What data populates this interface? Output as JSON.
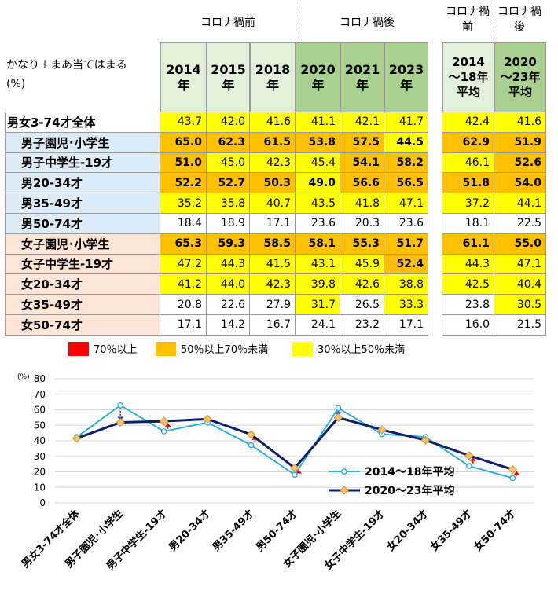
{
  "table": {
    "group_labels": {
      "before": "コロナ禍前",
      "after": "コロナ禍後",
      "before_avg": "コロナ禍\n前",
      "after_avg": "コロナ禍\n後"
    },
    "corner_label": "かなり＋まあ当てはまる\n(%)",
    "year_headers": [
      "2014\n年",
      "2015\n年",
      "2018\n年",
      "2020\n年",
      "2021\n年",
      "2023\n年"
    ],
    "avg_headers": [
      "2014\n～18年\n平均",
      "2020\n～23年\n平均"
    ],
    "colors": {
      "red": "#ff0000",
      "orange": "#ffc000",
      "yellow": "#ffff00",
      "white": "#ffffff",
      "header_before": "#e2efda",
      "header_after": "#a9d08e",
      "label_blue": "#ddebf7",
      "label_pink": "#fce4d6"
    },
    "rows": [
      {
        "label": "男女3-74才全体",
        "tone": "white",
        "values": [
          "43.7",
          "42.0",
          "41.6",
          "41.1",
          "42.1",
          "41.7"
        ],
        "avgs": [
          "42.4",
          "41.6"
        ]
      },
      {
        "label": "男子園児･小学生",
        "tone": "blue",
        "values": [
          "65.0",
          "62.3",
          "61.5",
          "53.8",
          "57.5",
          "44.5"
        ],
        "avgs": [
          "62.9",
          "51.9"
        ]
      },
      {
        "label": "男子中学生-19才",
        "tone": "blue",
        "values": [
          "51.0",
          "45.0",
          "42.3",
          "45.4",
          "54.1",
          "58.2"
        ],
        "avgs": [
          "46.1",
          "52.6"
        ]
      },
      {
        "label": "男20-34才",
        "tone": "blue",
        "values": [
          "52.2",
          "52.7",
          "50.3",
          "49.0",
          "56.6",
          "56.5"
        ],
        "avgs": [
          "51.8",
          "54.0"
        ]
      },
      {
        "label": "男35-49才",
        "tone": "blue",
        "values": [
          "35.2",
          "35.8",
          "40.7",
          "43.5",
          "41.8",
          "47.1"
        ],
        "avgs": [
          "37.2",
          "44.1"
        ]
      },
      {
        "label": "男50-74才",
        "tone": "blue",
        "values": [
          "18.4",
          "18.9",
          "17.1",
          "23.6",
          "20.3",
          "23.6"
        ],
        "avgs": [
          "18.1",
          "22.5"
        ]
      },
      {
        "label": "女子園児･小学生",
        "tone": "pink",
        "values": [
          "65.3",
          "59.3",
          "58.5",
          "58.1",
          "55.3",
          "51.7"
        ],
        "avgs": [
          "61.1",
          "55.0"
        ]
      },
      {
        "label": "女子中学生-19才",
        "tone": "pink",
        "values": [
          "47.2",
          "44.3",
          "41.5",
          "43.1",
          "45.9",
          "52.4"
        ],
        "avgs": [
          "44.3",
          "47.1"
        ]
      },
      {
        "label": "女20-34才",
        "tone": "pink",
        "values": [
          "41.2",
          "44.0",
          "42.3",
          "39.8",
          "42.6",
          "38.8"
        ],
        "avgs": [
          "42.5",
          "40.4"
        ]
      },
      {
        "label": "女35-49才",
        "tone": "pink",
        "values": [
          "20.8",
          "22.6",
          "27.9",
          "31.7",
          "26.5",
          "33.3"
        ],
        "avgs": [
          "23.8",
          "30.5"
        ]
      },
      {
        "label": "女50-74才",
        "tone": "pink",
        "values": [
          "17.1",
          "14.2",
          "16.7",
          "24.1",
          "23.2",
          "17.1"
        ],
        "avgs": [
          "16.0",
          "21.5"
        ]
      }
    ],
    "bold_cells": [
      [
        1,
        0
      ],
      [
        1,
        1
      ],
      [
        1,
        2
      ],
      [
        1,
        3
      ],
      [
        1,
        4
      ],
      [
        1,
        5
      ],
      [
        2,
        0
      ],
      [
        2,
        4
      ],
      [
        2,
        5
      ],
      [
        3,
        0
      ],
      [
        3,
        1
      ],
      [
        3,
        2
      ],
      [
        3,
        3
      ],
      [
        3,
        4
      ],
      [
        3,
        5
      ],
      [
        6,
        0
      ],
      [
        6,
        1
      ],
      [
        6,
        2
      ],
      [
        6,
        3
      ],
      [
        6,
        4
      ],
      [
        6,
        5
      ],
      [
        7,
        5
      ],
      [
        1,
        6
      ],
      [
        1,
        7
      ],
      [
        2,
        7
      ],
      [
        3,
        6
      ],
      [
        3,
        7
      ],
      [
        6,
        6
      ],
      [
        6,
        7
      ]
    ]
  },
  "legend": [
    {
      "label": "70％以上",
      "color": "#ff0000"
    },
    {
      "label": "50％以上70％未満",
      "color": "#ffc000"
    },
    {
      "label": "30％以上50％未満",
      "color": "#ffff00"
    }
  ],
  "chart_data": {
    "type": "line",
    "y_unit": "(%)",
    "ylim": [
      0,
      80
    ],
    "yticks": [
      0,
      10,
      20,
      30,
      40,
      50,
      60,
      70,
      80
    ],
    "grid": true,
    "categories": [
      "男女3-74才全体",
      "男子園児･小学生",
      "男子中学生-19才",
      "男20-34才",
      "男35-49才",
      "男50-74才",
      "女子園児･小学生",
      "女子中学生-19才",
      "女20-34才",
      "女35-49才",
      "女50-74才"
    ],
    "series": [
      {
        "name": "2014～18年平均",
        "color": "#1eaadf",
        "marker": "circle",
        "values": [
          42.4,
          62.9,
          46.1,
          51.8,
          37.2,
          18.1,
          61.1,
          44.3,
          42.5,
          23.8,
          16.0
        ]
      },
      {
        "name": "2020～23年平均",
        "color": "#0d1f6b",
        "marker": "diamond",
        "values": [
          41.6,
          51.9,
          52.6,
          54.0,
          44.1,
          22.5,
          55.0,
          47.1,
          40.4,
          30.5,
          21.5
        ]
      }
    ],
    "legend_position": "lower-right",
    "arrows": {
      "up_color": "#ff0000",
      "down_color": "#1f3a93"
    }
  }
}
